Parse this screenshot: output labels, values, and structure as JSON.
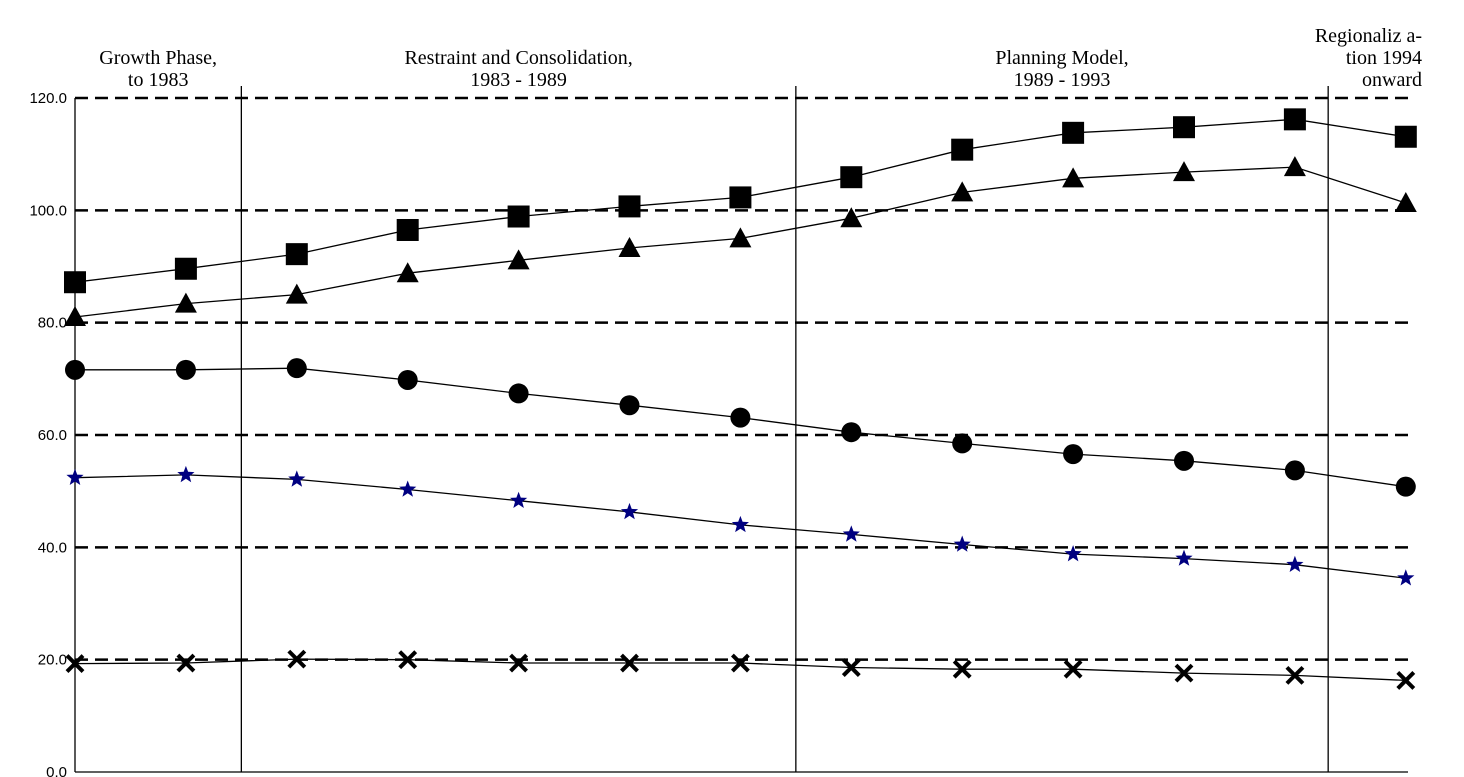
{
  "chart_data": {
    "type": "line",
    "title": "",
    "xlabel": "",
    "ylabel": "",
    "ylim": [
      0,
      120
    ],
    "yticks": [
      "0.0",
      "20.0",
      "40.0",
      "60.0",
      "80.0",
      "100.0",
      "120.0"
    ],
    "grid": "horizontal dashed",
    "x_count": 13,
    "phases": [
      {
        "label_lines": [
          "Growth Phase,",
          "to 1983"
        ]
      },
      {
        "label_lines": [
          "Restraint and Consolidation,",
          "1983 - 1989"
        ]
      },
      {
        "label_lines": [
          "Planning Model,",
          "1989 - 1993"
        ]
      },
      {
        "label_lines": [
          "Regionaliz a-",
          "tion 1994",
          "onward"
        ]
      }
    ],
    "phase_boundaries_after_index": [
      1.5,
      6.5,
      11.3
    ],
    "series": [
      {
        "marker": "square",
        "color": "#000000",
        "values": [
          87.2,
          89.6,
          92.2,
          96.5,
          98.9,
          100.7,
          102.3,
          105.9,
          110.8,
          113.8,
          114.8,
          116.2,
          113.1
        ]
      },
      {
        "marker": "triangle",
        "color": "#000000",
        "values": [
          81.0,
          83.4,
          85.0,
          88.8,
          91.1,
          93.3,
          95.0,
          98.6,
          103.2,
          105.7,
          106.8,
          107.7,
          101.3
        ]
      },
      {
        "marker": "circle",
        "color": "#000000",
        "values": [
          71.6,
          71.6,
          71.9,
          69.8,
          67.4,
          65.3,
          63.1,
          60.5,
          58.5,
          56.6,
          55.4,
          53.7,
          50.8
        ]
      },
      {
        "marker": "star",
        "color": "#000080",
        "values": [
          52.4,
          52.9,
          52.1,
          50.3,
          48.3,
          46.3,
          44.0,
          42.3,
          40.5,
          38.8,
          38.0,
          36.9,
          34.5
        ]
      },
      {
        "marker": "x",
        "color": "#000000",
        "values": [
          19.3,
          19.4,
          20.1,
          20.0,
          19.4,
          19.4,
          19.4,
          18.6,
          18.3,
          18.3,
          17.6,
          17.2,
          16.3
        ]
      }
    ]
  }
}
